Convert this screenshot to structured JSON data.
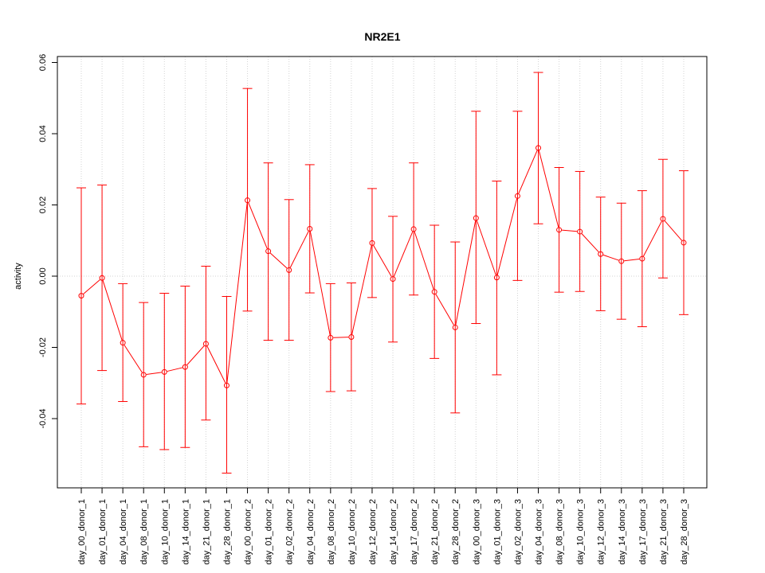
{
  "chart_data": {
    "type": "line",
    "title": "NR2E1",
    "xlabel": "",
    "ylabel": "activity",
    "ylim": [
      -0.06,
      0.06
    ],
    "yticks": [
      -0.04,
      -0.02,
      0.0,
      0.02,
      0.04,
      0.06
    ],
    "ytick_labels": [
      "-0.04",
      "-0.02",
      "0.00",
      "0.02",
      "0.04",
      "0.06"
    ],
    "grid": true,
    "color": "#ff0000",
    "categories": [
      "day_00_donor_1",
      "day_01_donor_1",
      "day_04_donor_1",
      "day_08_donor_1",
      "day_10_donor_1",
      "day_14_donor_1",
      "day_21_donor_1",
      "day_28_donor_1",
      "day_00_donor_2",
      "day_01_donor_2",
      "day_02_donor_2",
      "day_04_donor_2",
      "day_08_donor_2",
      "day_10_donor_2",
      "day_12_donor_2",
      "day_14_donor_2",
      "day_17_donor_2",
      "day_21_donor_2",
      "day_28_donor_2",
      "day_00_donor_3",
      "day_01_donor_3",
      "day_02_donor_3",
      "day_04_donor_3",
      "day_08_donor_3",
      "day_10_donor_3",
      "day_12_donor_3",
      "day_14_donor_3",
      "day_17_donor_3",
      "day_21_donor_3",
      "day_28_donor_3"
    ],
    "values": [
      -0.0055,
      -0.0005,
      -0.0187,
      -0.0277,
      -0.0269,
      -0.0255,
      -0.019,
      -0.0307,
      0.0213,
      0.007,
      0.0017,
      0.0133,
      -0.0173,
      -0.0171,
      0.0093,
      -0.0008,
      0.0132,
      -0.0044,
      -0.0144,
      0.0163,
      -0.0004,
      0.0225,
      0.036,
      0.013,
      0.0125,
      0.0062,
      0.0042,
      0.0049,
      0.0161,
      0.0094
    ],
    "upper": [
      0.0248,
      0.0256,
      -0.0021,
      -0.0074,
      -0.0048,
      -0.0028,
      0.0028,
      -0.0057,
      0.0527,
      0.0318,
      0.0215,
      0.0313,
      -0.0021,
      -0.0019,
      0.0246,
      0.0168,
      0.0318,
      0.0143,
      0.0096,
      0.0463,
      0.0267,
      0.0463,
      0.0572,
      0.0305,
      0.0294,
      0.0222,
      0.0205,
      0.024,
      0.0328,
      0.0296
    ],
    "lower": [
      -0.0359,
      -0.0265,
      -0.0352,
      -0.0479,
      -0.0487,
      -0.0481,
      -0.0404,
      -0.0553,
      -0.0098,
      -0.018,
      -0.018,
      -0.0047,
      -0.0324,
      -0.0322,
      -0.006,
      -0.0185,
      -0.0053,
      -0.0231,
      -0.0384,
      -0.0133,
      -0.0277,
      -0.0012,
      0.0147,
      -0.0045,
      -0.0043,
      -0.0097,
      -0.0121,
      -0.0142,
      -0.0005,
      -0.0108
    ]
  }
}
